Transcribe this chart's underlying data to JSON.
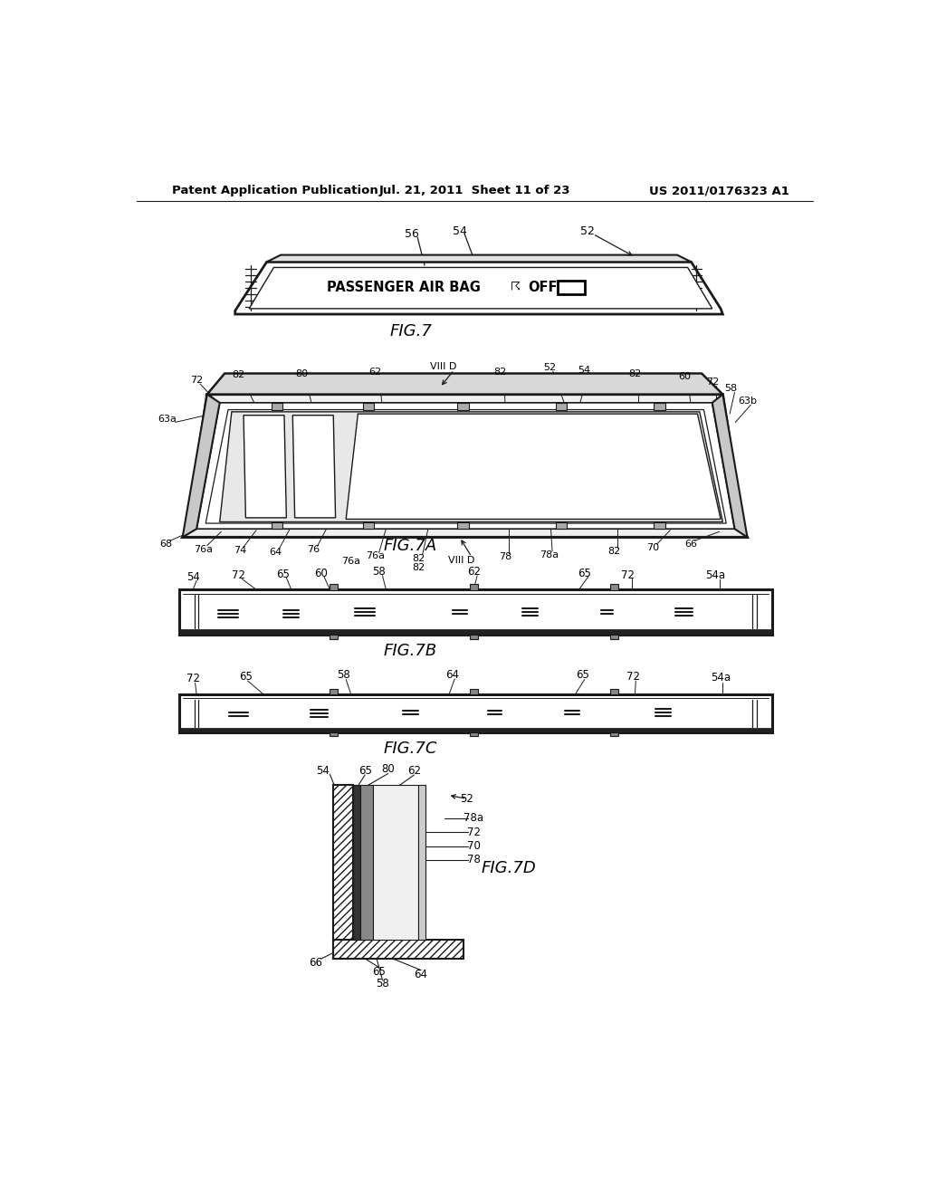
{
  "bg_color": "#ffffff",
  "header_left": "Patent Application Publication",
  "header_center": "Jul. 21, 2011  Sheet 11 of 23",
  "header_right": "US 2011/0176323 A1",
  "fig7_label": "FIG.7",
  "fig7a_label": "FIG.7A",
  "fig7b_label": "FIG.7B",
  "fig7c_label": "FIG.7C",
  "fig7d_label": "FIG.7D",
  "lc": "#1a1a1a",
  "lw_thick": 2.2,
  "lw_med": 1.4,
  "lw_thin": 0.8
}
